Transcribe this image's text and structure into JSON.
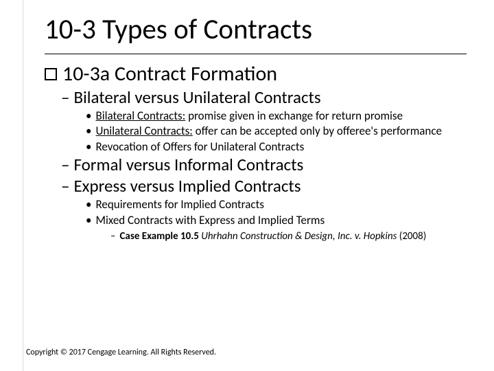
{
  "colors": {
    "background": "#ffffff",
    "text": "#000000",
    "rule": "#000000",
    "sidebar_border": "#d9d9d9"
  },
  "typography": {
    "title_fontsize": 41,
    "lvl1_fontsize": 30,
    "lvl2_fontsize": 25,
    "lvl3_fontsize": 17,
    "lvl4_fontsize": 15,
    "footer_fontsize": 12,
    "font_family": "Calibri"
  },
  "title": "10-3 Types of Contracts",
  "lvl1": {
    "label": "10-3a Contract Formation"
  },
  "lvl2": {
    "a": "Bilateral versus Unilateral Contracts",
    "b": "Formal versus Informal Contracts",
    "c": "Express versus Implied Contracts"
  },
  "lvl3": {
    "a1_lead": "Bilateral Contracts:",
    "a1_rest": " promise given in exchange for return promise",
    "a2_lead": "Unilateral Contracts:",
    "a2_rest": " offer can be accepted only by offeree's performance",
    "a3": "Revocation of Offers for Unilateral Contracts",
    "c1": "Requirements for Implied Contracts",
    "c2": "Mixed Contracts with Express and Implied Terms"
  },
  "lvl4": {
    "case_lead": "Case Example 10.5 ",
    "case_italic": "Uhrhahn Construction & Design, Inc. v. Hopkins ",
    "case_tail": "(2008)"
  },
  "footer": "Copyright © 2017 Cengage Learning.  All Rights Reserved."
}
